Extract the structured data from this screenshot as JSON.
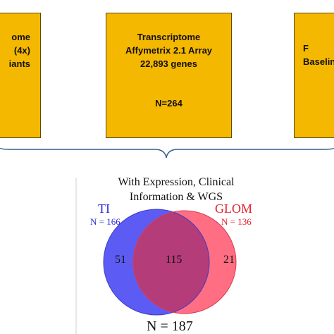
{
  "boxes": {
    "left": {
      "lines": [
        "ome",
        "(4x)",
        "iants"
      ]
    },
    "center": {
      "lines": [
        "Transcriptome",
        "Affymetrix 2.1 Array",
        "22,893 genes"
      ],
      "n": "N=264"
    },
    "right": {
      "lines": [
        "F",
        "Baselin"
      ]
    }
  },
  "venn": {
    "title_lines": [
      "With Expression, Clinical",
      "Information & WGS"
    ],
    "sets": [
      {
        "label": "TI",
        "count_text": "N = 166",
        "color": "#5c5cf5",
        "text_color": "#2a2ad8"
      },
      {
        "label": "GLOM",
        "count_text": "N = 136",
        "color": "#ff6e82",
        "text_color": "#e2232e"
      }
    ],
    "regions": {
      "ti_only": "51",
      "overlap": "115",
      "glom_only": "21"
    },
    "overlap_color": "#b43c78",
    "total": "N = 187"
  },
  "colors": {
    "box_fill": "#f5b800",
    "box_border": "#5a4a00",
    "brace": "#3a5a8c",
    "divider": "#cfcfcf"
  }
}
